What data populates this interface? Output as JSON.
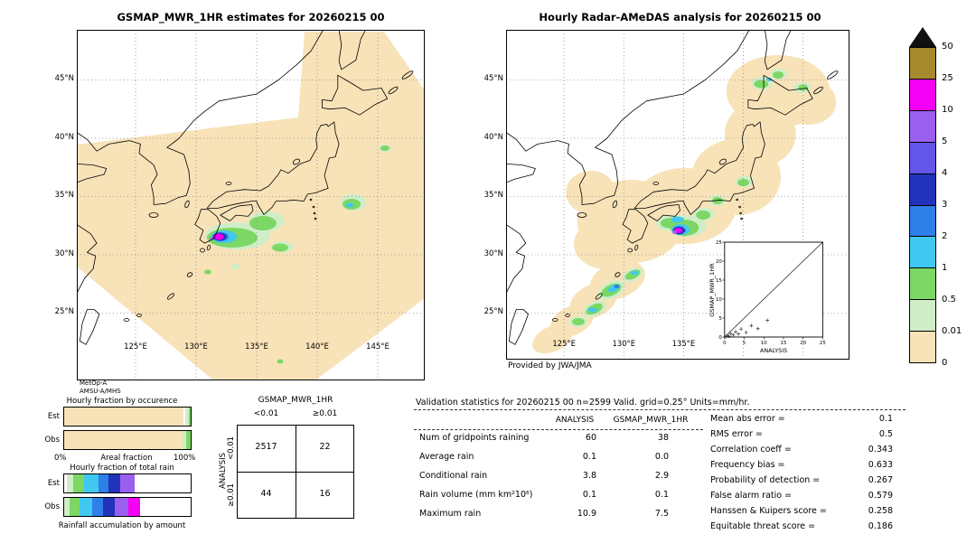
{
  "maps": {
    "left": {
      "title": "GSMAP_MWR_1HR estimates for 20260215 00",
      "lat_labels": [
        "45°N",
        "40°N",
        "35°N",
        "30°N",
        "25°N"
      ],
      "lon_labels": [
        "125°E",
        "130°E",
        "135°E",
        "140°E",
        "145°E"
      ]
    },
    "right": {
      "title": "Hourly Radar-AMeDAS analysis for 20260215 00",
      "lat_labels": [
        "45°N",
        "40°N",
        "35°N",
        "30°N",
        "25°N"
      ],
      "lon_labels": [
        "125°E",
        "130°E",
        "135°E"
      ],
      "credit": "Provided by JWA/JMA",
      "inset": {
        "ylabel": "GSMAP_MWR_1HR",
        "xlabel": "ANALYSIS",
        "ticks": [
          "0",
          "5",
          "10",
          "15",
          "20",
          "25"
        ]
      }
    }
  },
  "colorbar": {
    "tick_labels": [
      "50",
      "25",
      "10",
      "5",
      "4",
      "3",
      "2",
      "1",
      "0.5",
      "0.01",
      "0"
    ],
    "segment_colors": [
      "#a58a2d",
      "#f400f4",
      "#9b5ff0",
      "#6456e8",
      "#2233bb",
      "#2e7fe8",
      "#41c8f0",
      "#7cd764",
      "#cfeec8",
      "#f8e2b8"
    ]
  },
  "legend_panel": {
    "satellite": "MetOp-A",
    "sensor": "AMSU-A/MHS",
    "occurrence_title": "Hourly fraction by occurence",
    "row_labels": [
      "Est",
      "Obs"
    ],
    "areal_left": "0%",
    "areal_label": "Areal fraction",
    "areal_right": "100%",
    "total_rain_title": "Hourly fraction of total rain",
    "accumulation_label": "Rainfall accumulation by amount"
  },
  "bars": {
    "occ_est": [
      {
        "color": "#f8e2b8",
        "pct": 94
      },
      {
        "color": "#ffffff",
        "pct": 1.5
      },
      {
        "color": "#cfeec8",
        "pct": 3
      },
      {
        "color": "#7cd764",
        "pct": 1.5
      }
    ],
    "occ_obs": [
      {
        "color": "#f8e2b8",
        "pct": 93.5
      },
      {
        "color": "#cfeec8",
        "pct": 3
      },
      {
        "color": "#7cd764",
        "pct": 3.5
      }
    ],
    "rain_est": [
      {
        "color": "#ffffff",
        "pct": 2
      },
      {
        "color": "#cfeec8",
        "pct": 5
      },
      {
        "color": "#7cd764",
        "pct": 9
      },
      {
        "color": "#41c8f0",
        "pct": 11
      },
      {
        "color": "#2e7fe8",
        "pct": 8
      },
      {
        "color": "#2233bb",
        "pct": 9
      },
      {
        "color": "#9b5ff0",
        "pct": 12
      },
      {
        "color": "#ffffff",
        "pct": 44
      }
    ],
    "rain_obs": [
      {
        "color": "#cfeec8",
        "pct": 4
      },
      {
        "color": "#7cd764",
        "pct": 8
      },
      {
        "color": "#41c8f0",
        "pct": 10
      },
      {
        "color": "#2e7fe8",
        "pct": 9
      },
      {
        "color": "#2233bb",
        "pct": 9
      },
      {
        "color": "#9b5ff0",
        "pct": 11
      },
      {
        "color": "#f400f4",
        "pct": 9
      },
      {
        "color": "#ffffff",
        "pct": 40
      }
    ]
  },
  "contingency": {
    "title": "GSMAP_MWR_1HR",
    "col_labels": [
      "<0.01",
      "≥0.01"
    ],
    "row_axis": "ANALYSIS",
    "row_labels": [
      "<0.01",
      "≥0.01"
    ],
    "cells": [
      [
        "2517",
        "22"
      ],
      [
        "44",
        "16"
      ]
    ]
  },
  "stats": {
    "header": "Validation statistics for 20260215 00  n=2599 Valid. grid=0.25° Units=mm/hr.",
    "col1": "ANALYSIS",
    "col2": "GSMAP_MWR_1HR",
    "rows": [
      {
        "label": "Num of gridpoints raining",
        "a": "60",
        "g": "38"
      },
      {
        "label": "Average rain",
        "a": "0.1",
        "g": "0.0"
      },
      {
        "label": "Conditional rain",
        "a": "3.8",
        "g": "2.9"
      },
      {
        "label": "Rain volume (mm km²10⁶)",
        "a": "0.1",
        "g": "0.1"
      },
      {
        "label": "Maximum rain",
        "a": "10.9",
        "g": "7.5"
      }
    ],
    "metrics": [
      {
        "label": "Mean abs error =",
        "value": "0.1"
      },
      {
        "label": "RMS error =",
        "value": "0.5"
      },
      {
        "label": "Correlation coeff =",
        "value": "0.343"
      },
      {
        "label": "Frequency bias =",
        "value": "0.633"
      },
      {
        "label": "Probability of detection =",
        "value": "0.267"
      },
      {
        "label": "False alarm ratio =",
        "value": "0.579"
      },
      {
        "label": "Hanssen & Kuipers score =",
        "value": "0.258"
      },
      {
        "label": "Equitable threat score =",
        "value": "0.186"
      }
    ]
  },
  "chart_data": [
    {
      "type": "table",
      "title": "Contingency table (threshold 0.01 mm/hr)",
      "columns": [
        "GSMAP_MWR_1HR <0.01",
        "GSMAP_MWR_1HR ≥0.01"
      ],
      "rows": [
        {
          "label": "ANALYSIS <0.01",
          "values": [
            2517,
            22
          ]
        },
        {
          "label": "ANALYSIS ≥0.01",
          "values": [
            44,
            16
          ]
        }
      ]
    },
    {
      "type": "table",
      "title": "Validation statistics for 20260215 00 (n=2599, grid=0.25°, units=mm/hr)",
      "categories": [
        "Num of gridpoints raining",
        "Average rain",
        "Conditional rain",
        "Rain volume (mm km²10⁶)",
        "Maximum rain"
      ],
      "series": [
        {
          "name": "ANALYSIS",
          "values": [
            60,
            0.1,
            3.8,
            0.1,
            10.9
          ]
        },
        {
          "name": "GSMAP_MWR_1HR",
          "values": [
            38,
            0.0,
            2.9,
            0.1,
            7.5
          ]
        }
      ]
    },
    {
      "type": "table",
      "title": "Skill scores",
      "categories": [
        "Mean abs error",
        "RMS error",
        "Correlation coeff",
        "Frequency bias",
        "Probability of detection",
        "False alarm ratio",
        "Hanssen & Kuipers score",
        "Equitable threat score"
      ],
      "values": [
        0.1,
        0.5,
        0.343,
        0.633,
        0.267,
        0.579,
        0.258,
        0.186
      ]
    },
    {
      "type": "scatter",
      "title": "GSMAP_MWR_1HR vs ANALYSIS (inset)",
      "xlabel": "ANALYSIS",
      "ylabel": "GSMAP_MWR_1HR",
      "xlim": [
        0,
        25
      ],
      "ylim": [
        0,
        25
      ],
      "x": [
        0.3,
        0.7,
        1.1,
        1.6,
        2.2,
        2.8,
        3.5,
        4.2,
        5.5,
        6.8,
        8.5,
        10.9
      ],
      "y": [
        0.1,
        0.4,
        0.2,
        0.9,
        0.5,
        1.4,
        0.8,
        2.1,
        1.2,
        3.0,
        2.2,
        4.4
      ]
    },
    {
      "type": "bar",
      "title": "Hourly fraction by occurence (areal fraction, %)",
      "categories": [
        "Est",
        "Obs"
      ],
      "series": [
        {
          "name": "0–0.01",
          "values": [
            94,
            93.5
          ]
        },
        {
          "name": "0.01–0.5",
          "values": [
            3,
            3
          ]
        },
        {
          "name": "0.5–1",
          "values": [
            1.5,
            3.5
          ]
        }
      ],
      "xlim": [
        0,
        100
      ]
    },
    {
      "type": "bar",
      "title": "Hourly fraction of total rain by amount (%)",
      "categories": [
        "Est",
        "Obs"
      ],
      "series": [
        {
          "name": "0.01–0.5",
          "values": [
            5,
            4
          ]
        },
        {
          "name": "0.5–1",
          "values": [
            9,
            8
          ]
        },
        {
          "name": "1–2",
          "values": [
            11,
            10
          ]
        },
        {
          "name": "2–3",
          "values": [
            8,
            9
          ]
        },
        {
          "name": "3–4",
          "values": [
            9,
            9
          ]
        },
        {
          "name": "5–10",
          "values": [
            12,
            11
          ]
        },
        {
          "name": "10–25",
          "values": [
            0,
            9
          ]
        }
      ],
      "xlim": [
        0,
        100
      ]
    }
  ]
}
